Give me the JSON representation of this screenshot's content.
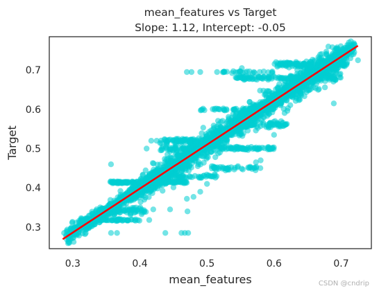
{
  "chart_data": {
    "type": "scatter",
    "title": "mean_features vs Target",
    "subtitle": "Slope: 1.12, Intercept: -0.05",
    "xlabel": "mean_features",
    "ylabel": "Target",
    "xlim": [
      0.265,
      0.745
    ],
    "ylim": [
      0.245,
      0.785
    ],
    "xticks": [
      0.3,
      0.4,
      0.5,
      0.6,
      0.7
    ],
    "xtick_labels": [
      "0.3",
      "0.4",
      "0.5",
      "0.6",
      "0.7"
    ],
    "yticks": [
      0.3,
      0.4,
      0.5,
      0.6,
      0.7
    ],
    "ytick_labels": [
      "0.3",
      "0.4",
      "0.5",
      "0.6",
      "0.7"
    ],
    "grid": false,
    "scatter_color": "#00CED1",
    "line_color": "#ff0000",
    "fit_line": {
      "slope": 1.12,
      "intercept": -0.05,
      "x_range": [
        0.285,
        0.725
      ]
    },
    "cloud_bands": [
      {
        "x_range": [
          0.29,
          0.72
        ],
        "y_spread": 0.03,
        "count": 1700
      },
      {
        "x_range": [
          0.4,
          0.7
        ],
        "y_spread": 0.06,
        "count": 900
      }
    ],
    "clusters": [
      {
        "x_range": [
          0.355,
          0.47
        ],
        "y": 0.414,
        "y_spread": 0.004,
        "count": 130
      },
      {
        "x_range": [
          0.43,
          0.52
        ],
        "y": 0.52,
        "y_spread": 0.01,
        "count": 90
      },
      {
        "x_range": [
          0.43,
          0.48
        ],
        "y": 0.5,
        "y_spread": 0.01,
        "count": 40
      },
      {
        "x_range": [
          0.52,
          0.6
        ],
        "y": 0.5,
        "y_spread": 0.006,
        "count": 70
      },
      {
        "x_range": [
          0.5,
          0.58
        ],
        "y": 0.45,
        "y_spread": 0.008,
        "count": 45
      },
      {
        "x_range": [
          0.45,
          0.52
        ],
        "y": 0.43,
        "y_spread": 0.008,
        "count": 35
      },
      {
        "x_range": [
          0.49,
          0.6
        ],
        "y": 0.6,
        "y_spread": 0.004,
        "count": 50
      },
      {
        "x_range": [
          0.54,
          0.7
        ],
        "y": 0.68,
        "y_spread": 0.008,
        "count": 120
      },
      {
        "x_range": [
          0.6,
          0.71
        ],
        "y": 0.715,
        "y_spread": 0.01,
        "count": 120
      },
      {
        "x_range": [
          0.52,
          0.6
        ],
        "y": 0.695,
        "y_spread": 0.004,
        "count": 25
      },
      {
        "x_range": [
          0.31,
          0.4
        ],
        "y": 0.318,
        "y_spread": 0.004,
        "count": 60
      },
      {
        "x_range": [
          0.34,
          0.41
        ],
        "y": 0.34,
        "y_spread": 0.012,
        "count": 80
      },
      {
        "x_range": [
          0.55,
          0.62
        ],
        "y": 0.56,
        "y_spread": 0.012,
        "count": 60
      }
    ],
    "points": [
      [
        0.287,
        0.285
      ],
      [
        0.357,
        0.46
      ],
      [
        0.357,
        0.285
      ],
      [
        0.366,
        0.285
      ],
      [
        0.42,
        0.345
      ],
      [
        0.445,
        0.345
      ],
      [
        0.414,
        0.318
      ],
      [
        0.471,
        0.34
      ],
      [
        0.438,
        0.285
      ],
      [
        0.462,
        0.285
      ],
      [
        0.467,
        0.285
      ],
      [
        0.472,
        0.285
      ],
      [
        0.47,
        0.372
      ],
      [
        0.48,
        0.377
      ],
      [
        0.41,
        0.5
      ],
      [
        0.417,
        0.52
      ],
      [
        0.44,
        0.51
      ],
      [
        0.425,
        0.52
      ],
      [
        0.49,
        0.39
      ],
      [
        0.5,
        0.41
      ],
      [
        0.47,
        0.695
      ],
      [
        0.477,
        0.695
      ],
      [
        0.49,
        0.695
      ],
      [
        0.515,
        0.695
      ],
      [
        0.525,
        0.695
      ],
      [
        0.552,
        0.705
      ],
      [
        0.689,
        0.615
      ],
      [
        0.725,
        0.725
      ],
      [
        0.69,
        0.7
      ],
      [
        0.6,
        0.535
      ],
      [
        0.58,
        0.47
      ],
      [
        0.573,
        0.465
      ]
    ]
  }
}
